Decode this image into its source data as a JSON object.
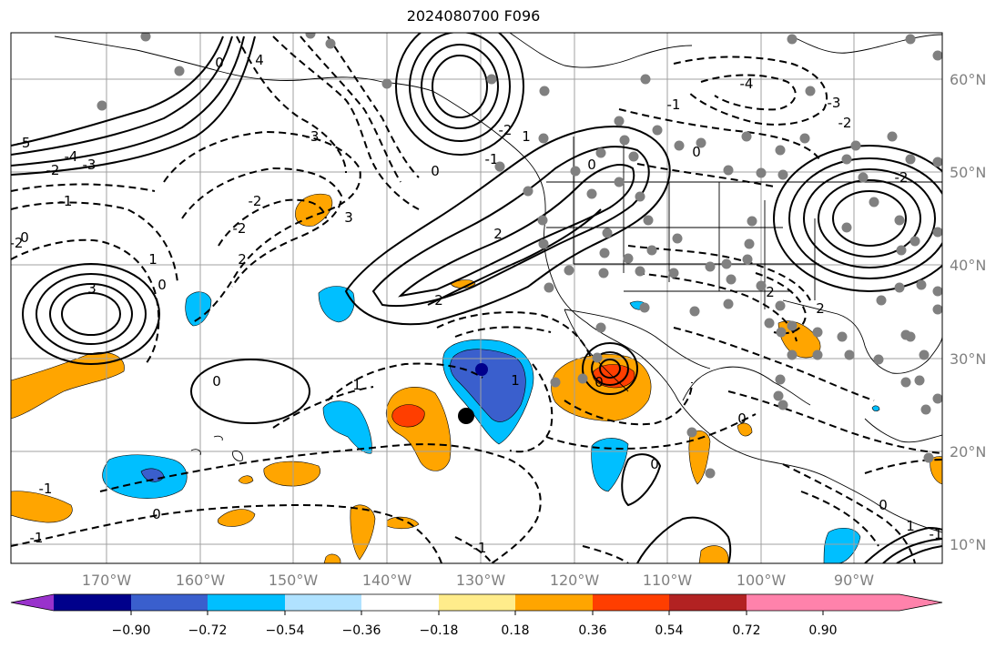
{
  "title": "2024080700 F096",
  "lat_labels": [
    "60°N",
    "50°N",
    "40°N",
    "30°N",
    "20°N",
    "10°N"
  ],
  "lon_labels": [
    "170°W",
    "160°W",
    "150°W",
    "140°W",
    "130°W",
    "120°W",
    "110°W",
    "100°W",
    "90°W"
  ],
  "colorbar": {
    "ticks": [
      "−0.90",
      "−0.72",
      "−0.54",
      "−0.36",
      "−0.18",
      "0.18",
      "0.36",
      "0.54",
      "0.72",
      "0.90"
    ],
    "colors": [
      "#9932cc",
      "#00008b",
      "#3a5fcd",
      "#00bfff",
      "#b0e2ff",
      "#ffffff",
      "#ffec8b",
      "#ffa500",
      "#ff3e00",
      "#b22222",
      "#ff82ab"
    ]
  },
  "contour_labels": [
    "-5",
    "-4",
    "-3",
    "-3",
    "-2",
    "-2",
    "-2",
    "-2",
    "-1",
    "-1",
    "0",
    "0",
    "0",
    "0",
    "0",
    "0",
    "0",
    "1",
    "1",
    "1",
    "2",
    "2",
    "2",
    "2",
    "2",
    "3",
    "3",
    "-1",
    "-1",
    "0",
    "0",
    "4",
    "-4",
    "-3",
    "-2",
    "1",
    "0",
    "-2",
    "-1",
    "-1",
    "0",
    "-1",
    "0",
    "1",
    "-2"
  ],
  "colors": {
    "contour": "#000000",
    "station": "#808080",
    "grid": "#a0a0a0",
    "coast": "#000000"
  }
}
